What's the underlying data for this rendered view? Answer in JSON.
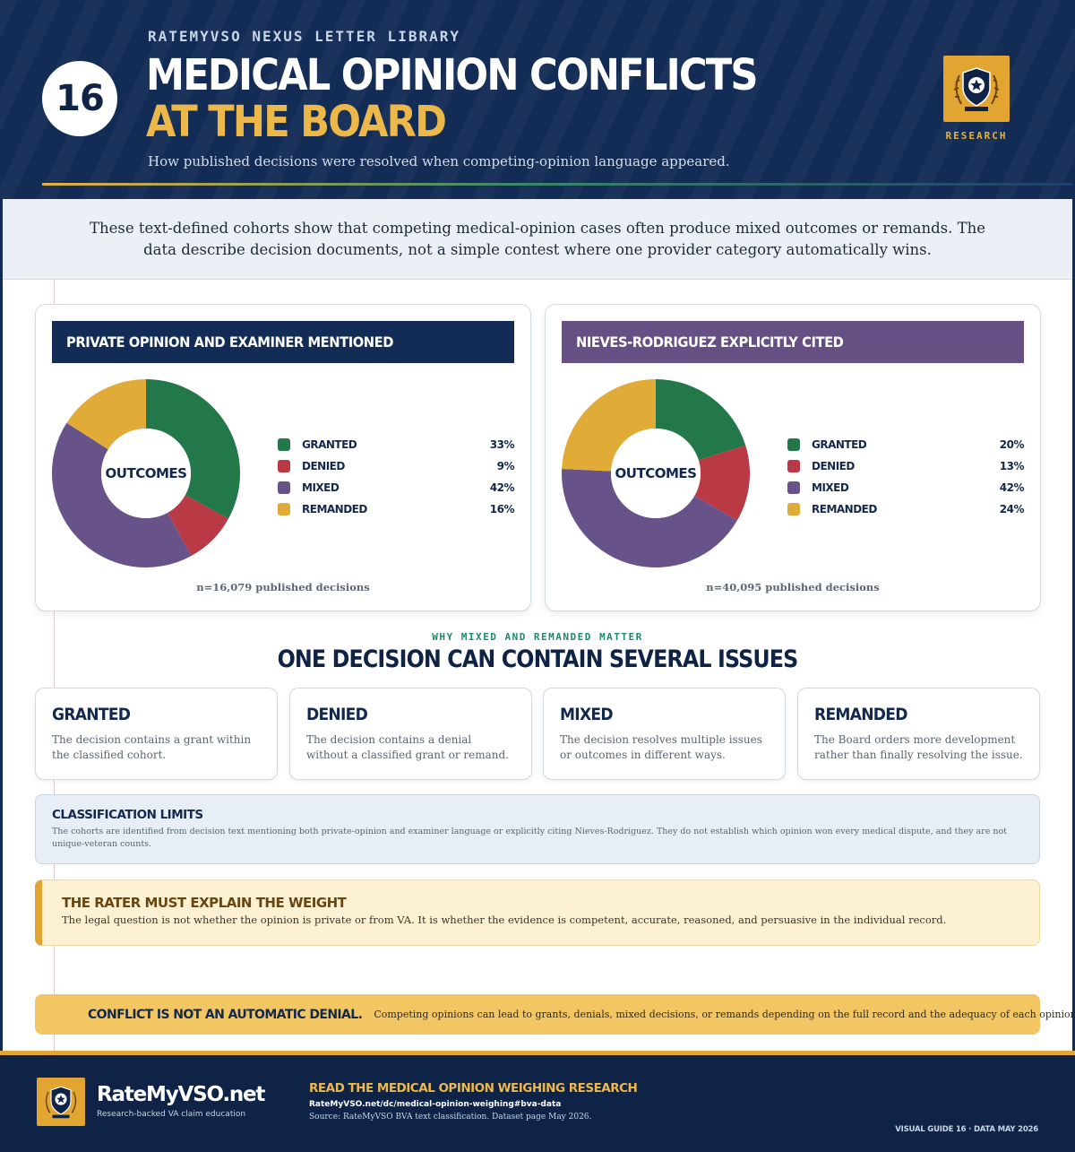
{
  "header": {
    "kicker": "RATEMYVSO NEXUS LETTER LIBRARY",
    "guide_number": "16",
    "title_line1": "MEDICAL OPINION CONFLICTS",
    "title_line2": "AT THE BOARD",
    "subtitle": "How published decisions were resolved when competing-opinion language appeared.",
    "badge_label": "RESEARCH",
    "badge_icon": "star-shield-icon"
  },
  "intro": "These text-defined cohorts show that competing medical-opinion cases often produce mixed outcomes or remands. The data describe decision documents, not a simple contest where one provider category automatically wins.",
  "colors": {
    "granted": "#23784a",
    "denied": "#b93a44",
    "mixed": "#67538a",
    "remanded": "#e0ab36",
    "navy": "#132c55",
    "purple_header": "#664f83",
    "gold": "#e2a532"
  },
  "chart_data": [
    {
      "type": "pie",
      "title": "PRIVATE OPINION AND EXAMINER MENTIONED",
      "center_label": "OUTCOMES",
      "categories": [
        "GRANTED",
        "DENIED",
        "MIXED",
        "REMANDED"
      ],
      "values": [
        33,
        9,
        42,
        16
      ],
      "value_labels": [
        "33%",
        "9%",
        "42%",
        "16%"
      ],
      "colors": [
        "#23784a",
        "#b93a44",
        "#67538a",
        "#e0ab36"
      ],
      "note": "n=16,079 published decisions",
      "legend": "right"
    },
    {
      "type": "pie",
      "title": "NIEVES-RODRIGUEZ EXPLICITLY CITED",
      "center_label": "OUTCOMES",
      "categories": [
        "GRANTED",
        "DENIED",
        "MIXED",
        "REMANDED"
      ],
      "values": [
        20,
        13,
        42,
        24
      ],
      "value_labels": [
        "20%",
        "13%",
        "42%",
        "24%"
      ],
      "colors": [
        "#23784a",
        "#b93a44",
        "#67538a",
        "#e0ab36"
      ],
      "note": "n=40,095 published decisions",
      "legend": "right"
    }
  ],
  "section": {
    "kicker": "WHY MIXED AND REMANDED MATTER",
    "title": "ONE DECISION CAN CONTAIN SEVERAL ISSUES"
  },
  "definitions": [
    {
      "title": "GRANTED",
      "body": "The decision contains a grant within the classified cohort."
    },
    {
      "title": "DENIED",
      "body": "The decision contains a denial without a classified grant or remand."
    },
    {
      "title": "MIXED",
      "body": "The decision resolves multiple issues or outcomes in different ways."
    },
    {
      "title": "REMANDED",
      "body": "The Board orders more development rather than finally resolving the issue."
    }
  ],
  "limits": {
    "title": "CLASSIFICATION LIMITS",
    "body": "The cohorts are identified from decision text mentioning both private-opinion and examiner language or explicitly citing Nieves-Rodriguez. They do not establish which opinion won every medical dispute, and they are not unique-veteran counts."
  },
  "rater": {
    "title": "THE RATER MUST EXPLAIN THE WEIGHT",
    "body": "The legal question is not whether the opinion is private or from VA. It is whether the evidence is competent, accurate, reasoned, and persuasive in the individual record."
  },
  "banner": {
    "strong": "CONFLICT IS NOT AN AUTOMATIC DENIAL.",
    "text": "Competing opinions can lead to grants, denials, mixed decisions, or remands depending on the full record and the adequacy of each opinion."
  },
  "footer": {
    "brand": "RateMyVSO.net",
    "tagline": "Research-backed VA claim education",
    "cta": "READ THE MEDICAL OPINION WEIGHING RESEARCH",
    "url": "RateMyVSO.net/dc/medical-opinion-weighing#bva-data",
    "source": "Source: RateMyVSO BVA text classification. Dataset page May 2026.",
    "guide_meta": "VISUAL GUIDE 16 · DATA MAY 2026",
    "logo_icon": "star-shield-icon"
  }
}
